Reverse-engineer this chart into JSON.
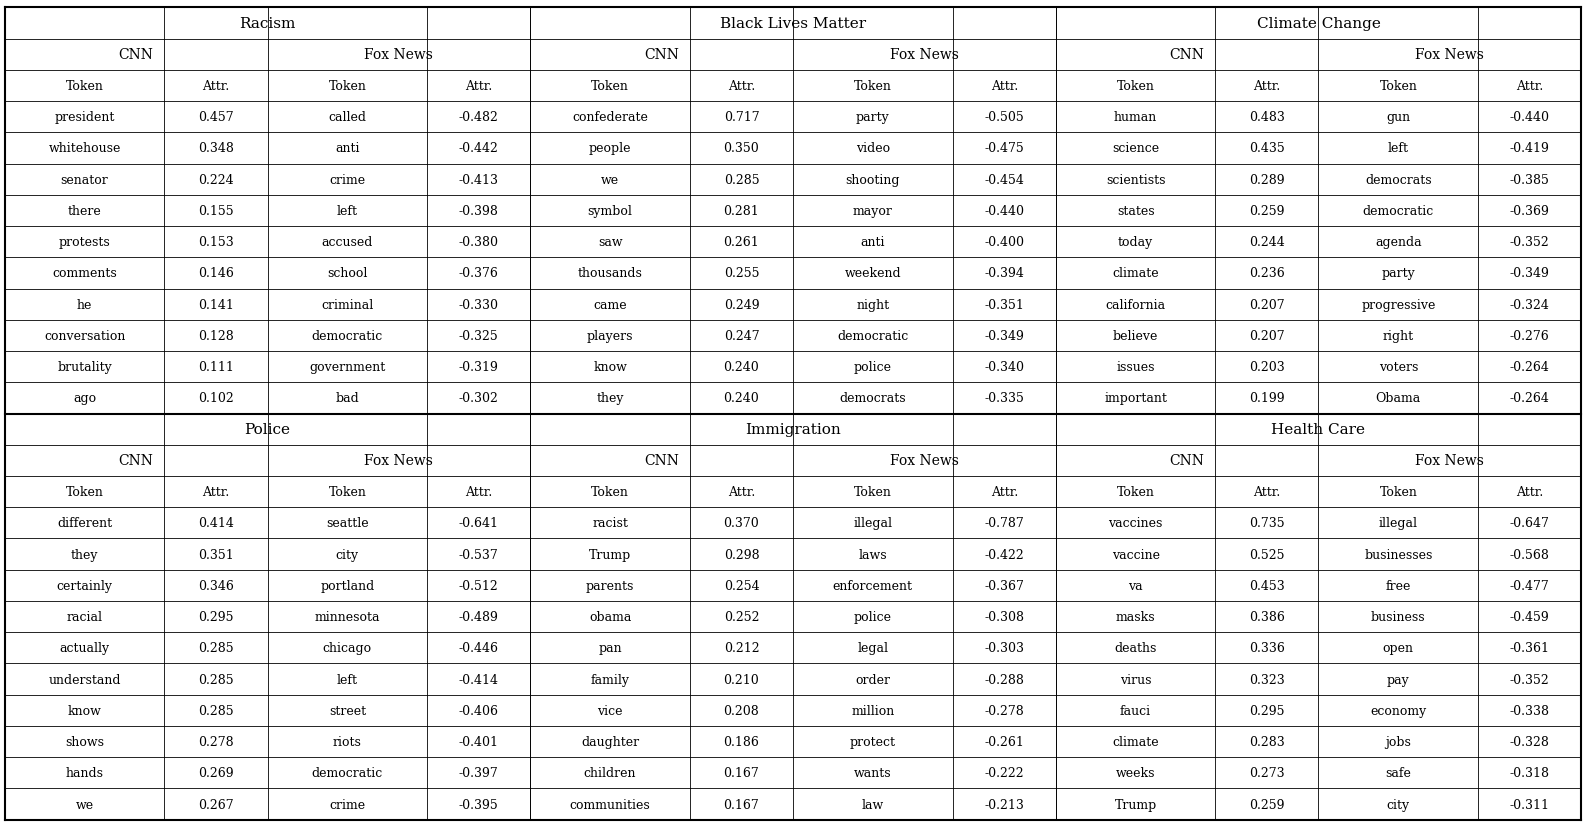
{
  "topics_top": [
    "Racism",
    "Black Lives Matter",
    "Climate Change"
  ],
  "topics_bot": [
    "Police",
    "Immigration",
    "Health Care"
  ],
  "racism": {
    "cnn": [
      [
        "president",
        "0.457"
      ],
      [
        "whitehouse",
        "0.348"
      ],
      [
        "senator",
        "0.224"
      ],
      [
        "there",
        "0.155"
      ],
      [
        "protests",
        "0.153"
      ],
      [
        "comments",
        "0.146"
      ],
      [
        "he",
        "0.141"
      ],
      [
        "conversation",
        "0.128"
      ],
      [
        "brutality",
        "0.111"
      ],
      [
        "ago",
        "0.102"
      ]
    ],
    "fox": [
      [
        "called",
        "-0.482"
      ],
      [
        "anti",
        "-0.442"
      ],
      [
        "crime",
        "-0.413"
      ],
      [
        "left",
        "-0.398"
      ],
      [
        "accused",
        "-0.380"
      ],
      [
        "school",
        "-0.376"
      ],
      [
        "criminal",
        "-0.330"
      ],
      [
        "democratic",
        "-0.325"
      ],
      [
        "government",
        "-0.319"
      ],
      [
        "bad",
        "-0.302"
      ]
    ]
  },
  "blm": {
    "cnn": [
      [
        "confederate",
        "0.717"
      ],
      [
        "people",
        "0.350"
      ],
      [
        "we",
        "0.285"
      ],
      [
        "symbol",
        "0.281"
      ],
      [
        "saw",
        "0.261"
      ],
      [
        "thousands",
        "0.255"
      ],
      [
        "came",
        "0.249"
      ],
      [
        "players",
        "0.247"
      ],
      [
        "know",
        "0.240"
      ],
      [
        "they",
        "0.240"
      ]
    ],
    "fox": [
      [
        "party",
        "-0.505"
      ],
      [
        "video",
        "-0.475"
      ],
      [
        "shooting",
        "-0.454"
      ],
      [
        "mayor",
        "-0.440"
      ],
      [
        "anti",
        "-0.400"
      ],
      [
        "weekend",
        "-0.394"
      ],
      [
        "night",
        "-0.351"
      ],
      [
        "democratic",
        "-0.349"
      ],
      [
        "police",
        "-0.340"
      ],
      [
        "democrats",
        "-0.335"
      ]
    ]
  },
  "climate": {
    "cnn": [
      [
        "human",
        "0.483"
      ],
      [
        "science",
        "0.435"
      ],
      [
        "scientists",
        "0.289"
      ],
      [
        "states",
        "0.259"
      ],
      [
        "today",
        "0.244"
      ],
      [
        "climate",
        "0.236"
      ],
      [
        "california",
        "0.207"
      ],
      [
        "believe",
        "0.207"
      ],
      [
        "issues",
        "0.203"
      ],
      [
        "important",
        "0.199"
      ]
    ],
    "fox": [
      [
        "gun",
        "-0.440"
      ],
      [
        "left",
        "-0.419"
      ],
      [
        "democrats",
        "-0.385"
      ],
      [
        "democratic",
        "-0.369"
      ],
      [
        "agenda",
        "-0.352"
      ],
      [
        "party",
        "-0.349"
      ],
      [
        "progressive",
        "-0.324"
      ],
      [
        "right",
        "-0.276"
      ],
      [
        "voters",
        "-0.264"
      ],
      [
        "Obama",
        "-0.264"
      ]
    ]
  },
  "police": {
    "cnn": [
      [
        "different",
        "0.414"
      ],
      [
        "they",
        "0.351"
      ],
      [
        "certainly",
        "0.346"
      ],
      [
        "racial",
        "0.295"
      ],
      [
        "actually",
        "0.285"
      ],
      [
        "understand",
        "0.285"
      ],
      [
        "know",
        "0.285"
      ],
      [
        "shows",
        "0.278"
      ],
      [
        "hands",
        "0.269"
      ],
      [
        "we",
        "0.267"
      ]
    ],
    "fox": [
      [
        "seattle",
        "-0.641"
      ],
      [
        "city",
        "-0.537"
      ],
      [
        "portland",
        "-0.512"
      ],
      [
        "minnesota",
        "-0.489"
      ],
      [
        "chicago",
        "-0.446"
      ],
      [
        "left",
        "-0.414"
      ],
      [
        "street",
        "-0.406"
      ],
      [
        "riots",
        "-0.401"
      ],
      [
        "democratic",
        "-0.397"
      ],
      [
        "crime",
        "-0.395"
      ]
    ]
  },
  "immigration": {
    "cnn": [
      [
        "racist",
        "0.370"
      ],
      [
        "Trump",
        "0.298"
      ],
      [
        "parents",
        "0.254"
      ],
      [
        "obama",
        "0.252"
      ],
      [
        "pan",
        "0.212"
      ],
      [
        "family",
        "0.210"
      ],
      [
        "vice",
        "0.208"
      ],
      [
        "daughter",
        "0.186"
      ],
      [
        "children",
        "0.167"
      ],
      [
        "communities",
        "0.167"
      ]
    ],
    "fox": [
      [
        "illegal",
        "-0.787"
      ],
      [
        "laws",
        "-0.422"
      ],
      [
        "enforcement",
        "-0.367"
      ],
      [
        "police",
        "-0.308"
      ],
      [
        "legal",
        "-0.303"
      ],
      [
        "order",
        "-0.288"
      ],
      [
        "million",
        "-0.278"
      ],
      [
        "protect",
        "-0.261"
      ],
      [
        "wants",
        "-0.222"
      ],
      [
        "law",
        "-0.213"
      ]
    ]
  },
  "healthcare": {
    "cnn": [
      [
        "vaccines",
        "0.735"
      ],
      [
        "vaccine",
        "0.525"
      ],
      [
        "va",
        "0.453"
      ],
      [
        "masks",
        "0.386"
      ],
      [
        "deaths",
        "0.336"
      ],
      [
        "virus",
        "0.323"
      ],
      [
        "fauci",
        "0.295"
      ],
      [
        "climate",
        "0.283"
      ],
      [
        "weeks",
        "0.273"
      ],
      [
        "Trump",
        "0.259"
      ]
    ],
    "fox": [
      [
        "illegal",
        "-0.647"
      ],
      [
        "businesses",
        "-0.568"
      ],
      [
        "free",
        "-0.477"
      ],
      [
        "business",
        "-0.459"
      ],
      [
        "open",
        "-0.361"
      ],
      [
        "pay",
        "-0.352"
      ],
      [
        "economy",
        "-0.338"
      ],
      [
        "jobs",
        "-0.328"
      ],
      [
        "safe",
        "-0.318"
      ],
      [
        "city",
        "-0.311"
      ]
    ]
  },
  "font_size_topic": 11,
  "font_size_header": 10,
  "font_size_subheader": 9,
  "font_size_data": 9,
  "line_color": "#000000",
  "bg_color": "#ffffff",
  "text_color": "#000000"
}
